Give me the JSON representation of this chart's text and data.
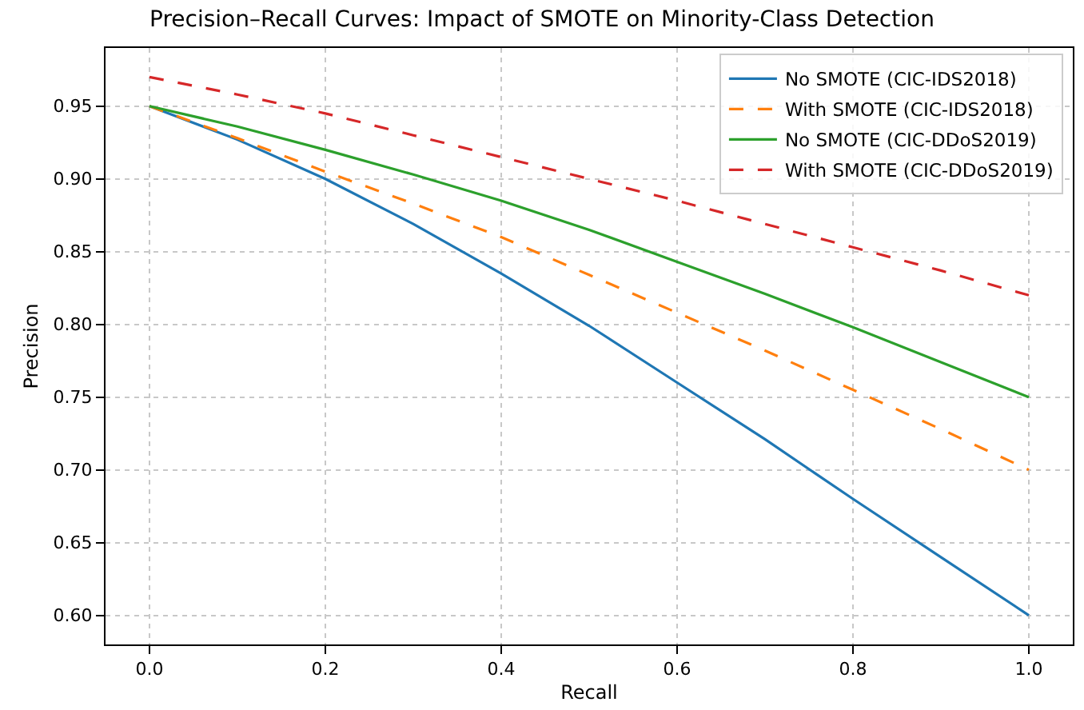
{
  "chart_data": {
    "type": "line",
    "title": "Precision–Recall Curves: Impact of SMOTE on Minority-Class Detection",
    "xlabel": "Recall",
    "ylabel": "Precision",
    "x": [
      0.0,
      0.1,
      0.2,
      0.3,
      0.4,
      0.5,
      0.6,
      0.7,
      0.8,
      0.9,
      1.0
    ],
    "series": [
      {
        "name": "No SMOTE (CIC-IDS2018)",
        "color": "#1f77b4",
        "line_style": "solid",
        "values": [
          0.95,
          0.927,
          0.9,
          0.869,
          0.835,
          0.799,
          0.76,
          0.721,
          0.68,
          0.64,
          0.6
        ]
      },
      {
        "name": "With SMOTE (CIC-IDS2018)",
        "color": "#ff7f0e",
        "line_style": "dashed",
        "values": [
          0.95,
          0.928,
          0.905,
          0.883,
          0.86,
          0.834,
          0.808,
          0.782,
          0.755,
          0.728,
          0.7
        ]
      },
      {
        "name": "No SMOTE (CIC-DDoS2019)",
        "color": "#2ca02c",
        "line_style": "solid",
        "values": [
          0.95,
          0.936,
          0.92,
          0.903,
          0.885,
          0.865,
          0.843,
          0.821,
          0.798,
          0.774,
          0.75
        ]
      },
      {
        "name": "With SMOTE (CIC-DDoS2019)",
        "color": "#d62728",
        "line_style": "dashed",
        "values": [
          0.97,
          0.958,
          0.945,
          0.93,
          0.915,
          0.9,
          0.885,
          0.869,
          0.853,
          0.837,
          0.82
        ]
      }
    ],
    "xlim": [
      -0.05,
      1.05
    ],
    "ylim": [
      0.58,
      0.99
    ],
    "xticks": [
      {
        "value": 0,
        "label": "0.0"
      },
      0.2,
      0.4,
      0.6,
      0.8,
      {
        "value": 1,
        "label": "1.0"
      }
    ],
    "yticks": [
      {
        "value": 0.6,
        "label": "0.60"
      },
      0.65,
      {
        "value": 0.7,
        "label": "0.70"
      },
      0.75,
      {
        "value": 0.8,
        "label": "0.80"
      },
      0.85,
      {
        "value": 0.9,
        "label": "0.90"
      },
      0.95
    ],
    "grid": true,
    "legend": "top right",
    "marker": "none"
  }
}
